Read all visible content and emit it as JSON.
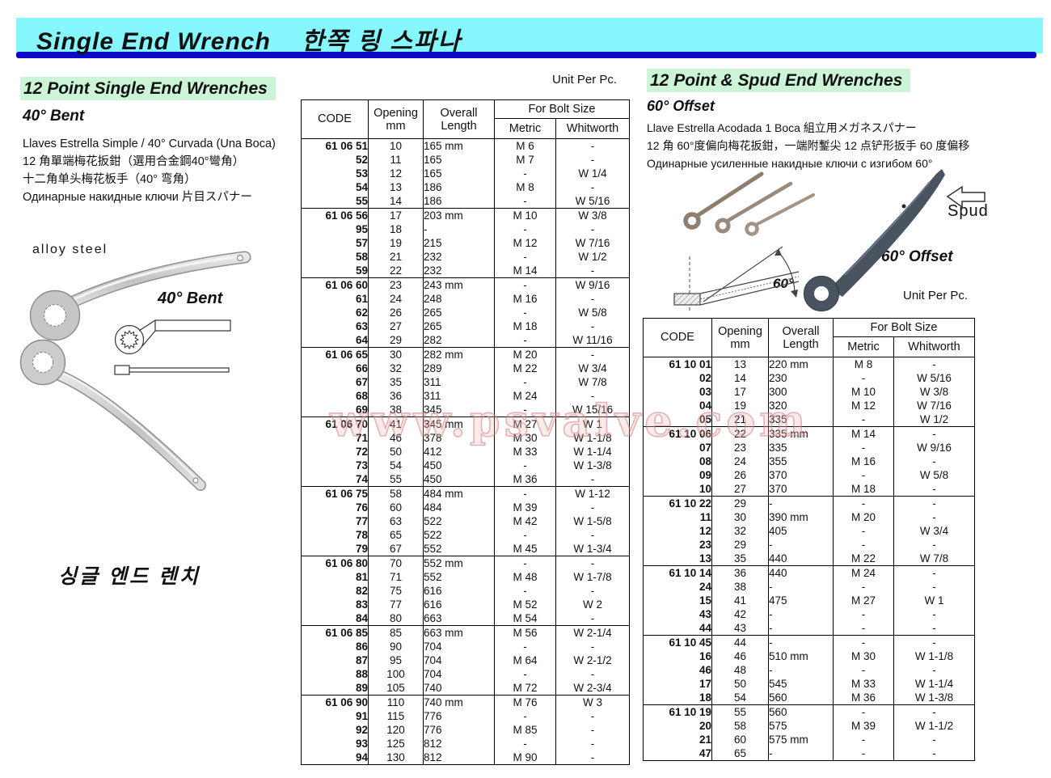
{
  "page": {
    "title_en": "Single End Wrench",
    "title_ko": "한쪽 링 스파나"
  },
  "watermark": "www.psvalve.com",
  "colors": {
    "header_band": "#86f8fd",
    "header_underline": "#0a0ac8",
    "section_highlight": "#ccf5d8",
    "watermark_pink": "#cd7d7d",
    "chrome_wrench": "#d2d2d2",
    "dark_wrench": "#4a5461"
  },
  "left_section": {
    "heading": "12 Point Single End Wrenches",
    "subheading": "40° Bent",
    "descriptions": [
      "Llaves Estrella Simple / 40° Curvada (Una Boca)",
      "12 角單端梅花扳鉗（選用合金鋼40°彎角）",
      "十二角单头梅花板手（40° 弯角）",
      "Одинарные накидные ключи 片目スパナー"
    ],
    "material_label": "alloy  steel",
    "image_label": "40° Bent",
    "footer_korean": "싱글 엔드 렌치"
  },
  "right_section": {
    "heading": "12 Point & Spud End Wrenches",
    "subheading": "60° Offset",
    "descriptions": [
      "Llave Estrella Acodada 1 Boca  組立用メガネスパナー",
      "12 角 60°度偏向梅花扳鉗，一端附鏨尖 12 点铲形扳手 60 度偏移",
      "Одинарные усиленные накидные ключи с изгибом 60°"
    ],
    "spud_label": "Spud",
    "offset_label": "60° Offset",
    "angle_label": "60°",
    "unit_label": "Unit Per Pc."
  },
  "main_table": {
    "unit_label": "Unit Per Pc.",
    "headers": {
      "code": "CODE",
      "opening_line1": "Opening",
      "opening_line2": "mm",
      "overall_line1": "Overall",
      "overall_line2": "Length",
      "bolt_size": "For Bolt Size",
      "metric": "Metric",
      "whitworth": "Whitworth"
    },
    "blocks": [
      [
        [
          "61 06 51",
          "10",
          "165 mm",
          "M 6",
          "-"
        ],
        [
          "52",
          "11",
          "165",
          "M 7",
          "-"
        ],
        [
          "53",
          "12",
          "165",
          "-",
          "W 1/4"
        ],
        [
          "54",
          "13",
          "186",
          "M 8",
          "-"
        ],
        [
          "55",
          "14",
          "186",
          "-",
          "W 5/16"
        ]
      ],
      [
        [
          "61 06 56",
          "17",
          "203 mm",
          "M 10",
          "W 3/8"
        ],
        [
          "95",
          "18",
          "-",
          "-",
          "-"
        ],
        [
          "57",
          "19",
          "215",
          "M 12",
          "W 7/16"
        ],
        [
          "58",
          "21",
          "232",
          "-",
          "W 1/2"
        ],
        [
          "59",
          "22",
          "232",
          "M 14",
          "-"
        ]
      ],
      [
        [
          "61 06 60",
          "23",
          "243 mm",
          "-",
          "W 9/16"
        ],
        [
          "61",
          "24",
          "248",
          "M 16",
          "-"
        ],
        [
          "62",
          "26",
          "265",
          "-",
          "W 5/8"
        ],
        [
          "63",
          "27",
          "265",
          "M 18",
          "-"
        ],
        [
          "64",
          "29",
          "282",
          "-",
          "W 11/16"
        ]
      ],
      [
        [
          "61 06 65",
          "30",
          "282 mm",
          "M 20",
          "-"
        ],
        [
          "66",
          "32",
          "289",
          "M 22",
          "W 3/4"
        ],
        [
          "67",
          "35",
          "311",
          "-",
          "W 7/8"
        ],
        [
          "68",
          "36",
          "311",
          "M 24",
          "-"
        ],
        [
          "69",
          "38",
          "345",
          "-",
          "W 15/16"
        ]
      ],
      [
        [
          "61 06 70",
          "41",
          "345 mm",
          "M 27",
          "W 1"
        ],
        [
          "71",
          "46",
          "378",
          "M 30",
          "W 1-1/8"
        ],
        [
          "72",
          "50",
          "412",
          "M 33",
          "W 1-1/4"
        ],
        [
          "73",
          "54",
          "450",
          "-",
          "W 1-3/8"
        ],
        [
          "74",
          "55",
          "450",
          "M 36",
          "-"
        ]
      ],
      [
        [
          "61 06 75",
          "58",
          "484 mm",
          "-",
          "W 1-12"
        ],
        [
          "76",
          "60",
          "484",
          "M 39",
          "-"
        ],
        [
          "77",
          "63",
          "522",
          "M 42",
          "W 1-5/8"
        ],
        [
          "78",
          "65",
          "522",
          "-",
          "-"
        ],
        [
          "79",
          "67",
          "552",
          "M 45",
          "W 1-3/4"
        ]
      ],
      [
        [
          "61 06 80",
          "70",
          "552 mm",
          "-",
          "-"
        ],
        [
          "81",
          "71",
          "552",
          "M 48",
          "W 1-7/8"
        ],
        [
          "82",
          "75",
          "616",
          "-",
          "-"
        ],
        [
          "83",
          "77",
          "616",
          "M 52",
          "W 2"
        ],
        [
          "84",
          "80",
          "663",
          "M 54",
          "-"
        ]
      ],
      [
        [
          "61 06 85",
          "85",
          "663 mm",
          "M 56",
          "W 2-1/4"
        ],
        [
          "86",
          "90",
          "704",
          "-",
          "-"
        ],
        [
          "87",
          "95",
          "704",
          "M 64",
          "W 2-1/2"
        ],
        [
          "88",
          "100",
          "704",
          "-",
          "-"
        ],
        [
          "89",
          "105",
          "740",
          "M 72",
          "W 2-3/4"
        ]
      ],
      [
        [
          "61 06 90",
          "110",
          "740 mm",
          "M 76",
          "W 3"
        ],
        [
          "91",
          "115",
          "776",
          "-",
          "-"
        ],
        [
          "92",
          "120",
          "776",
          "M 85",
          "-"
        ],
        [
          "93",
          "125",
          "812",
          "-",
          "-"
        ],
        [
          "94",
          "130",
          "812",
          "M 90",
          "-"
        ]
      ]
    ]
  },
  "right_table": {
    "headers": {
      "code": "CODE",
      "opening_line1": "Opening",
      "opening_line2": "mm",
      "overall_line1": "Overall",
      "overall_line2": "Length",
      "bolt_size": "For Bolt Size",
      "metric": "Metric",
      "whitworth": "Whitworth"
    },
    "blocks": [
      [
        [
          "61 10 01",
          "13",
          "220 mm",
          "M 8",
          "-"
        ],
        [
          "02",
          "14",
          "230",
          "-",
          "W 5/16"
        ],
        [
          "03",
          "17",
          "300",
          "M 10",
          "W 3/8"
        ],
        [
          "04",
          "19",
          "320",
          "M 12",
          "W 7/16"
        ],
        [
          "05",
          "21",
          "335",
          "-",
          "W 1/2"
        ]
      ],
      [
        [
          "61 10 06",
          "22",
          "335 mm",
          "M 14",
          "-"
        ],
        [
          "07",
          "23",
          "335",
          "-",
          "W 9/16"
        ],
        [
          "08",
          "24",
          "355",
          "M 16",
          "-"
        ],
        [
          "09",
          "26",
          "370",
          "-",
          "W 5/8"
        ],
        [
          "10",
          "27",
          "370",
          "M 18",
          "-"
        ]
      ],
      [
        [
          "61 10 22",
          "29",
          "-",
          "-",
          "-"
        ],
        [
          "11",
          "30",
          "390 mm",
          "M 20",
          "-"
        ],
        [
          "12",
          "32",
          "405",
          "-",
          "W 3/4"
        ],
        [
          "23",
          "29",
          "-",
          "-",
          "-"
        ],
        [
          "13",
          "35",
          "440",
          "M 22",
          "W 7/8"
        ]
      ],
      [
        [
          "61 10 14",
          "36",
          "440",
          "M 24",
          "-"
        ],
        [
          "24",
          "38",
          "-",
          "-",
          "-"
        ],
        [
          "15",
          "41",
          "475",
          "M 27",
          "W 1"
        ],
        [
          "43",
          "42",
          "-",
          "-",
          "-"
        ],
        [
          "44",
          "43",
          "-",
          "-",
          "-"
        ]
      ],
      [
        [
          "61 10 45",
          "44",
          "-",
          "-",
          "-"
        ],
        [
          "16",
          "46",
          "510 mm",
          "M 30",
          "W 1-1/8"
        ],
        [
          "46",
          "48",
          "-",
          "-",
          "-"
        ],
        [
          "17",
          "50",
          "545",
          "M 33",
          "W 1-1/4"
        ],
        [
          "18",
          "54",
          "560",
          "M 36",
          "W 1-3/8"
        ]
      ],
      [
        [
          "61 10 19",
          "55",
          "560",
          "-",
          "-"
        ],
        [
          "20",
          "58",
          "575",
          "M 39",
          "W 1-1/2"
        ],
        [
          "21",
          "60",
          "575 mm",
          "-",
          "-"
        ],
        [
          "47",
          "65",
          "-",
          "-",
          "-"
        ]
      ]
    ]
  }
}
